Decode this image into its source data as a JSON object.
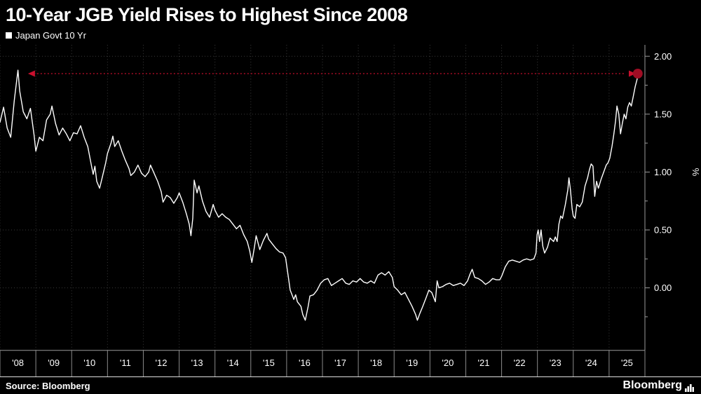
{
  "chart_data": {
    "type": "line",
    "title": "10-Year JGB Yield Rises to Highest Since 2008",
    "ylabel": "%",
    "source": "Source: Bloomberg",
    "brand": "Bloomberg",
    "xlim": [
      2008,
      2026
    ],
    "ylim": [
      -0.54,
      2.08
    ],
    "grid": "dotted",
    "legend_position": "top-left",
    "y_ticks": [
      {
        "value": 2.0,
        "label": "2.00"
      },
      {
        "value": 1.5,
        "label": "1.50"
      },
      {
        "value": 1.0,
        "label": "1.00"
      },
      {
        "value": 0.5,
        "label": "0.50"
      },
      {
        "value": 0.0,
        "label": "0.00"
      }
    ],
    "x_ticks": [
      {
        "value": 2008,
        "label": "'08"
      },
      {
        "value": 2009,
        "label": "'09"
      },
      {
        "value": 2010,
        "label": "'10"
      },
      {
        "value": 2011,
        "label": "'11"
      },
      {
        "value": 2012,
        "label": "'12"
      },
      {
        "value": 2013,
        "label": "'13"
      },
      {
        "value": 2014,
        "label": "'14"
      },
      {
        "value": 2015,
        "label": "'15"
      },
      {
        "value": 2016,
        "label": "'16"
      },
      {
        "value": 2017,
        "label": "'17"
      },
      {
        "value": 2018,
        "label": "'18"
      },
      {
        "value": 2019,
        "label": "'19"
      },
      {
        "value": 2020,
        "label": "'20"
      },
      {
        "value": 2021,
        "label": "'21"
      },
      {
        "value": 2022,
        "label": "'22"
      },
      {
        "value": 2023,
        "label": "'23"
      },
      {
        "value": 2024,
        "label": "'24"
      },
      {
        "value": 2025,
        "label": "'25"
      }
    ],
    "series": [
      {
        "name": "Japan Govt 10 Yr",
        "color": "#ffffff",
        "points": [
          [
            2008.0,
            1.43
          ],
          [
            2008.1,
            1.56
          ],
          [
            2008.2,
            1.38
          ],
          [
            2008.3,
            1.3
          ],
          [
            2008.4,
            1.62
          ],
          [
            2008.45,
            1.75
          ],
          [
            2008.5,
            1.88
          ],
          [
            2008.55,
            1.7
          ],
          [
            2008.65,
            1.52
          ],
          [
            2008.75,
            1.46
          ],
          [
            2008.85,
            1.55
          ],
          [
            2008.95,
            1.32
          ],
          [
            2009.0,
            1.18
          ],
          [
            2009.1,
            1.3
          ],
          [
            2009.2,
            1.27
          ],
          [
            2009.3,
            1.45
          ],
          [
            2009.4,
            1.5
          ],
          [
            2009.45,
            1.57
          ],
          [
            2009.55,
            1.42
          ],
          [
            2009.65,
            1.32
          ],
          [
            2009.75,
            1.38
          ],
          [
            2009.85,
            1.33
          ],
          [
            2009.95,
            1.27
          ],
          [
            2010.05,
            1.34
          ],
          [
            2010.15,
            1.33
          ],
          [
            2010.25,
            1.4
          ],
          [
            2010.35,
            1.3
          ],
          [
            2010.45,
            1.22
          ],
          [
            2010.55,
            1.06
          ],
          [
            2010.6,
            0.98
          ],
          [
            2010.65,
            1.05
          ],
          [
            2010.7,
            0.92
          ],
          [
            2010.78,
            0.86
          ],
          [
            2010.85,
            0.95
          ],
          [
            2010.95,
            1.08
          ],
          [
            2011.0,
            1.16
          ],
          [
            2011.1,
            1.25
          ],
          [
            2011.15,
            1.31
          ],
          [
            2011.2,
            1.22
          ],
          [
            2011.3,
            1.27
          ],
          [
            2011.4,
            1.18
          ],
          [
            2011.5,
            1.1
          ],
          [
            2011.6,
            1.03
          ],
          [
            2011.65,
            0.97
          ],
          [
            2011.75,
            1.0
          ],
          [
            2011.85,
            1.06
          ],
          [
            2011.95,
            0.99
          ],
          [
            2012.05,
            0.96
          ],
          [
            2012.15,
            1.0
          ],
          [
            2012.2,
            1.06
          ],
          [
            2012.3,
            0.99
          ],
          [
            2012.4,
            0.92
          ],
          [
            2012.5,
            0.83
          ],
          [
            2012.55,
            0.74
          ],
          [
            2012.65,
            0.8
          ],
          [
            2012.75,
            0.78
          ],
          [
            2012.85,
            0.73
          ],
          [
            2012.95,
            0.78
          ],
          [
            2013.0,
            0.82
          ],
          [
            2013.1,
            0.74
          ],
          [
            2013.2,
            0.64
          ],
          [
            2013.28,
            0.55
          ],
          [
            2013.33,
            0.45
          ],
          [
            2013.38,
            0.6
          ],
          [
            2013.42,
            0.93
          ],
          [
            2013.5,
            0.82
          ],
          [
            2013.55,
            0.88
          ],
          [
            2013.65,
            0.75
          ],
          [
            2013.75,
            0.66
          ],
          [
            2013.85,
            0.61
          ],
          [
            2013.95,
            0.72
          ],
          [
            2014.0,
            0.67
          ],
          [
            2014.1,
            0.61
          ],
          [
            2014.2,
            0.64
          ],
          [
            2014.3,
            0.61
          ],
          [
            2014.4,
            0.59
          ],
          [
            2014.5,
            0.55
          ],
          [
            2014.6,
            0.51
          ],
          [
            2014.7,
            0.54
          ],
          [
            2014.8,
            0.46
          ],
          [
            2014.9,
            0.4
          ],
          [
            2014.97,
            0.32
          ],
          [
            2015.03,
            0.22
          ],
          [
            2015.1,
            0.35
          ],
          [
            2015.15,
            0.45
          ],
          [
            2015.25,
            0.33
          ],
          [
            2015.35,
            0.41
          ],
          [
            2015.45,
            0.47
          ],
          [
            2015.5,
            0.42
          ],
          [
            2015.6,
            0.38
          ],
          [
            2015.7,
            0.34
          ],
          [
            2015.8,
            0.31
          ],
          [
            2015.9,
            0.3
          ],
          [
            2015.97,
            0.26
          ],
          [
            2016.05,
            0.09
          ],
          [
            2016.1,
            -0.02
          ],
          [
            2016.15,
            -0.06
          ],
          [
            2016.2,
            -0.1
          ],
          [
            2016.25,
            -0.06
          ],
          [
            2016.3,
            -0.12
          ],
          [
            2016.4,
            -0.16
          ],
          [
            2016.45,
            -0.23
          ],
          [
            2016.52,
            -0.28
          ],
          [
            2016.6,
            -0.16
          ],
          [
            2016.65,
            -0.07
          ],
          [
            2016.75,
            -0.06
          ],
          [
            2016.85,
            -0.02
          ],
          [
            2016.95,
            0.04
          ],
          [
            2017.05,
            0.07
          ],
          [
            2017.15,
            0.08
          ],
          [
            2017.25,
            0.02
          ],
          [
            2017.35,
            0.04
          ],
          [
            2017.45,
            0.06
          ],
          [
            2017.55,
            0.08
          ],
          [
            2017.65,
            0.04
          ],
          [
            2017.75,
            0.03
          ],
          [
            2017.85,
            0.06
          ],
          [
            2017.95,
            0.05
          ],
          [
            2018.05,
            0.08
          ],
          [
            2018.15,
            0.05
          ],
          [
            2018.25,
            0.04
          ],
          [
            2018.35,
            0.06
          ],
          [
            2018.45,
            0.04
          ],
          [
            2018.55,
            0.11
          ],
          [
            2018.65,
            0.13
          ],
          [
            2018.75,
            0.11
          ],
          [
            2018.85,
            0.14
          ],
          [
            2018.95,
            0.09
          ],
          [
            2019.0,
            0.01
          ],
          [
            2019.1,
            -0.02
          ],
          [
            2019.2,
            -0.06
          ],
          [
            2019.3,
            -0.04
          ],
          [
            2019.4,
            -0.1
          ],
          [
            2019.5,
            -0.16
          ],
          [
            2019.6,
            -0.23
          ],
          [
            2019.65,
            -0.28
          ],
          [
            2019.72,
            -0.22
          ],
          [
            2019.8,
            -0.16
          ],
          [
            2019.9,
            -0.08
          ],
          [
            2019.97,
            -0.02
          ],
          [
            2020.05,
            -0.04
          ],
          [
            2020.15,
            -0.12
          ],
          [
            2020.2,
            0.06
          ],
          [
            2020.25,
            0.0
          ],
          [
            2020.35,
            0.01
          ],
          [
            2020.45,
            0.03
          ],
          [
            2020.55,
            0.04
          ],
          [
            2020.65,
            0.02
          ],
          [
            2020.75,
            0.03
          ],
          [
            2020.85,
            0.04
          ],
          [
            2020.95,
            0.02
          ],
          [
            2021.05,
            0.06
          ],
          [
            2021.12,
            0.12
          ],
          [
            2021.18,
            0.16
          ],
          [
            2021.25,
            0.09
          ],
          [
            2021.35,
            0.08
          ],
          [
            2021.45,
            0.06
          ],
          [
            2021.55,
            0.03
          ],
          [
            2021.65,
            0.05
          ],
          [
            2021.75,
            0.08
          ],
          [
            2021.85,
            0.07
          ],
          [
            2021.95,
            0.07
          ],
          [
            2022.0,
            0.1
          ],
          [
            2022.1,
            0.18
          ],
          [
            2022.2,
            0.23
          ],
          [
            2022.3,
            0.24
          ],
          [
            2022.4,
            0.23
          ],
          [
            2022.5,
            0.22
          ],
          [
            2022.6,
            0.24
          ],
          [
            2022.7,
            0.25
          ],
          [
            2022.8,
            0.24
          ],
          [
            2022.9,
            0.25
          ],
          [
            2022.96,
            0.3
          ],
          [
            2022.99,
            0.46
          ],
          [
            2023.02,
            0.5
          ],
          [
            2023.06,
            0.4
          ],
          [
            2023.1,
            0.5
          ],
          [
            2023.15,
            0.36
          ],
          [
            2023.2,
            0.3
          ],
          [
            2023.28,
            0.35
          ],
          [
            2023.35,
            0.43
          ],
          [
            2023.45,
            0.4
          ],
          [
            2023.5,
            0.44
          ],
          [
            2023.55,
            0.4
          ],
          [
            2023.6,
            0.55
          ],
          [
            2023.65,
            0.62
          ],
          [
            2023.7,
            0.6
          ],
          [
            2023.78,
            0.72
          ],
          [
            2023.85,
            0.85
          ],
          [
            2023.88,
            0.95
          ],
          [
            2023.92,
            0.85
          ],
          [
            2023.97,
            0.68
          ],
          [
            2024.0,
            0.62
          ],
          [
            2024.05,
            0.6
          ],
          [
            2024.1,
            0.72
          ],
          [
            2024.18,
            0.7
          ],
          [
            2024.25,
            0.74
          ],
          [
            2024.33,
            0.88
          ],
          [
            2024.4,
            0.95
          ],
          [
            2024.45,
            1.02
          ],
          [
            2024.5,
            1.07
          ],
          [
            2024.55,
            1.05
          ],
          [
            2024.6,
            0.79
          ],
          [
            2024.65,
            0.92
          ],
          [
            2024.7,
            0.86
          ],
          [
            2024.78,
            0.94
          ],
          [
            2024.85,
            1.0
          ],
          [
            2024.92,
            1.06
          ],
          [
            2024.97,
            1.08
          ],
          [
            2025.02,
            1.12
          ],
          [
            2025.08,
            1.22
          ],
          [
            2025.13,
            1.32
          ],
          [
            2025.18,
            1.44
          ],
          [
            2025.22,
            1.57
          ],
          [
            2025.27,
            1.5
          ],
          [
            2025.32,
            1.33
          ],
          [
            2025.37,
            1.42
          ],
          [
            2025.42,
            1.5
          ],
          [
            2025.47,
            1.46
          ],
          [
            2025.52,
            1.56
          ],
          [
            2025.57,
            1.6
          ],
          [
            2025.62,
            1.57
          ],
          [
            2025.68,
            1.66
          ],
          [
            2025.73,
            1.74
          ],
          [
            2025.78,
            1.8
          ],
          [
            2025.8,
            1.85
          ]
        ]
      }
    ],
    "annotations": {
      "peak_reference_line": {
        "type": "horizontal-double-arrow",
        "y": 1.85,
        "x1": 2008.78,
        "x2": 2025.55,
        "color": "#c8102e",
        "style": "dotted"
      },
      "latest_point_marker": {
        "x": 2025.8,
        "y": 1.85,
        "radius": 7,
        "color": "#a00d24"
      }
    },
    "colors": {
      "background": "#000000",
      "text": "#ffffff",
      "grid": "#3a3a3a",
      "axis": "#9a9a9a",
      "separator": "#8a8a8a"
    }
  }
}
